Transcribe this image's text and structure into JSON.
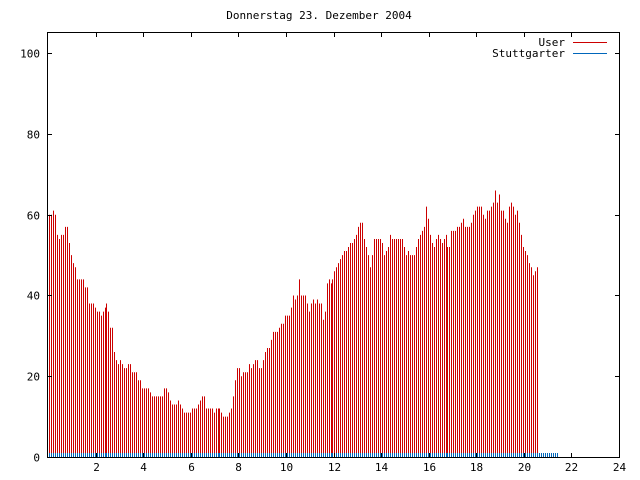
{
  "chart_data": {
    "type": "bar",
    "title": "Donnerstag 23. Dezember 2004",
    "xlabel": "",
    "ylabel": "",
    "xlim": [
      0,
      24
    ],
    "ylim": [
      0,
      105
    ],
    "xticks": [
      2,
      4,
      6,
      8,
      10,
      12,
      14,
      16,
      18,
      20,
      22,
      24
    ],
    "yticks": [
      0,
      20,
      40,
      60,
      80,
      100
    ],
    "grid": false,
    "legend": "top-right",
    "bin_hours": 0.08333,
    "series": [
      {
        "name": "User",
        "color": "#cc0000",
        "values": [
          60,
          60,
          61,
          60,
          55,
          54,
          55,
          55,
          57,
          57,
          53,
          50,
          48,
          47,
          44,
          44,
          44,
          44,
          42,
          42,
          38,
          38,
          38,
          37,
          36,
          36,
          35,
          36,
          37,
          38,
          36,
          32,
          32,
          26,
          24,
          23,
          24,
          23,
          22,
          22,
          23,
          23,
          21,
          21,
          21,
          19,
          19,
          17,
          17,
          17,
          17,
          16,
          15,
          15,
          15,
          15,
          15,
          15,
          17,
          17,
          16,
          14,
          13,
          13,
          13,
          14,
          13,
          12,
          11,
          11,
          11,
          11,
          12,
          12,
          12,
          13,
          14,
          15,
          15,
          12,
          12,
          12,
          12,
          11,
          12,
          12,
          12,
          11,
          10,
          10,
          10,
          11,
          12,
          15,
          19,
          22,
          22,
          20,
          21,
          21,
          21,
          23,
          22,
          23,
          24,
          24,
          22,
          22,
          24,
          26,
          27,
          27,
          29,
          31,
          31,
          31,
          32,
          33,
          33,
          35,
          35,
          35,
          37,
          40,
          39,
          40,
          44,
          40,
          40,
          40,
          38,
          36,
          38,
          39,
          38,
          39,
          38,
          38,
          34,
          36,
          43,
          44,
          43,
          44,
          46,
          47,
          48,
          49,
          50,
          51,
          51,
          52,
          53,
          53,
          54,
          55,
          57,
          58,
          58,
          54,
          52,
          50,
          47,
          50,
          54,
          54,
          54,
          54,
          53,
          50,
          51,
          52,
          55,
          54,
          54,
          54,
          54,
          54,
          54,
          52,
          50,
          51,
          50,
          50,
          50,
          52,
          54,
          55,
          56,
          57,
          62,
          59,
          55,
          53,
          52,
          54,
          55,
          54,
          53,
          54,
          55,
          52,
          52,
          56,
          56,
          56,
          57,
          57,
          58,
          59,
          57,
          57,
          57,
          58,
          60,
          61,
          62,
          62,
          62,
          60,
          59,
          61,
          61,
          62,
          63,
          66,
          63,
          65,
          61,
          61,
          59,
          58,
          62,
          63,
          62,
          60,
          61,
          58,
          55,
          52,
          51,
          50,
          48,
          47,
          45,
          46,
          47
        ]
      },
      {
        "name": "Stuttgarter",
        "color": "#0066bb",
        "values": [
          1,
          1,
          1,
          1,
          1,
          1,
          1,
          1,
          1,
          1,
          1,
          1,
          1,
          1,
          1,
          1,
          1,
          1,
          1,
          1,
          1,
          1,
          1,
          1,
          1,
          1,
          1,
          1,
          1,
          1,
          1,
          1,
          1,
          1,
          1,
          1,
          1,
          1,
          1,
          1,
          1,
          1,
          1,
          1,
          1,
          1,
          1,
          1,
          1,
          1,
          1,
          1,
          1,
          1,
          1,
          1,
          1,
          1,
          1,
          1,
          1,
          1,
          1,
          1,
          1,
          1,
          1,
          1,
          1,
          1,
          1,
          1,
          1,
          1,
          1,
          1,
          1,
          1,
          1,
          1,
          1,
          1,
          1,
          1,
          1,
          1,
          1,
          1,
          1,
          1,
          1,
          1,
          1,
          1,
          1,
          1,
          1,
          1,
          1,
          1,
          1,
          1,
          1,
          1,
          1,
          1,
          1,
          1,
          1,
          1,
          1,
          1,
          1,
          1,
          1,
          1,
          1,
          1,
          1,
          1,
          1,
          1,
          1,
          1,
          1,
          1,
          1,
          1,
          1,
          1,
          1,
          1,
          1,
          1,
          1,
          1,
          1,
          1,
          1,
          1,
          1,
          1,
          1,
          1,
          1,
          1,
          1,
          1,
          1,
          1,
          1,
          1,
          1,
          1,
          1,
          1,
          1,
          1,
          1,
          1,
          1,
          1,
          1,
          1,
          1,
          1,
          1,
          1,
          1,
          1,
          1,
          1,
          1,
          1,
          1,
          1,
          1,
          1,
          1,
          1,
          1,
          1,
          1,
          1,
          1,
          1,
          1,
          1,
          1,
          1,
          1,
          1,
          1,
          1,
          1,
          1,
          1,
          1,
          1,
          1,
          1,
          1,
          1,
          1,
          1,
          1,
          1,
          1,
          1,
          1,
          1,
          1,
          1,
          1,
          1,
          1,
          1,
          1,
          1,
          1,
          1,
          1,
          1,
          1,
          1,
          1,
          1,
          1,
          1,
          1,
          1,
          1,
          1,
          1,
          1,
          1,
          1,
          1,
          1,
          1,
          1,
          1,
          1,
          1,
          1,
          1,
          1,
          1,
          1,
          1,
          1,
          1,
          1,
          1,
          1,
          1,
          1
        ]
      }
    ]
  }
}
